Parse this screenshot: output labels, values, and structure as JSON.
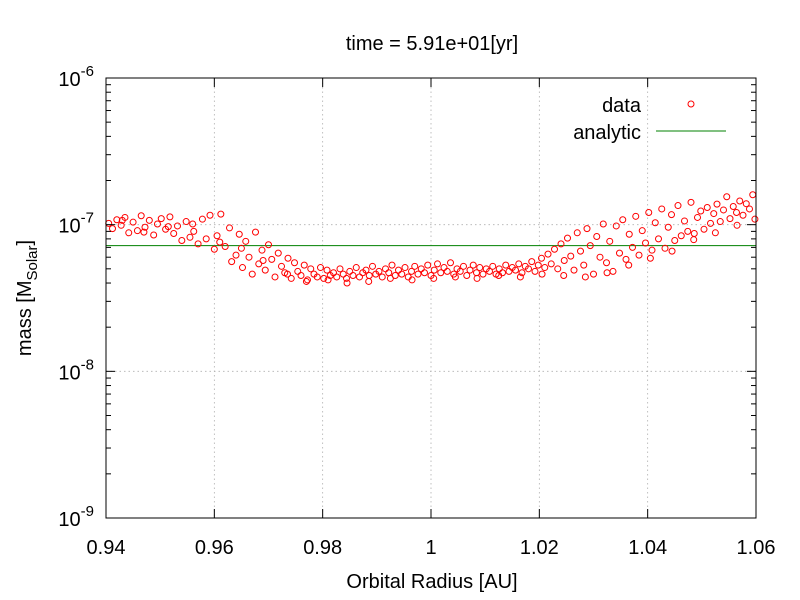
{
  "chart_data": {
    "type": "scatter",
    "title": "time = 5.91e+01[yr]",
    "xlabel": "Orbital Radius [AU]",
    "ylabel": {
      "prefix": "mass [M",
      "subscript": "Solar",
      "suffix": "]"
    },
    "xlim": [
      0.94,
      1.06
    ],
    "ylim": [
      1e-09,
      1e-06
    ],
    "yscale": "log",
    "grid": true,
    "legend_position": "top-right",
    "x_ticks": [
      {
        "value": 0.94,
        "label": "0.94"
      },
      {
        "value": 0.96,
        "label": "0.96"
      },
      {
        "value": 0.98,
        "label": "0.98"
      },
      {
        "value": 1.0,
        "label": "1"
      },
      {
        "value": 1.02,
        "label": "1.02"
      },
      {
        "value": 1.04,
        "label": "1.04"
      },
      {
        "value": 1.06,
        "label": "1.06"
      }
    ],
    "y_ticks": [
      {
        "value": 1e-09,
        "base": "10",
        "exp": "-9"
      },
      {
        "value": 1e-08,
        "base": "10",
        "exp": "-8"
      },
      {
        "value": 1e-07,
        "base": "10",
        "exp": "-7"
      },
      {
        "value": 1e-06,
        "base": "10",
        "exp": "-6"
      }
    ],
    "series": [
      {
        "name": "data",
        "kind": "scatter",
        "marker": "open-circle",
        "color": "#ff0000",
        "points": [
          [
            0.9405,
            1.02e-07
          ],
          [
            0.9412,
            9.4e-08
          ],
          [
            0.942,
            1.08e-07
          ],
          [
            0.9428,
            9.9e-08
          ],
          [
            0.9435,
            1.12e-07
          ],
          [
            0.9442,
            8.8e-08
          ],
          [
            0.945,
            1.04e-07
          ],
          [
            0.9458,
            9.1e-08
          ],
          [
            0.9465,
            1.15e-07
          ],
          [
            0.9472,
            9.6e-08
          ],
          [
            0.948,
            1.07e-07
          ],
          [
            0.9488,
            8.5e-08
          ],
          [
            0.9495,
            1.01e-07
          ],
          [
            0.9502,
            1.1e-07
          ],
          [
            0.951,
            9.3e-08
          ],
          [
            0.9518,
            1.13e-07
          ],
          [
            0.9525,
            8.7e-08
          ],
          [
            0.9532,
            9.8e-08
          ],
          [
            0.954,
            7.8e-08
          ],
          [
            0.9548,
            1.05e-07
          ],
          [
            0.9555,
            8.2e-08
          ],
          [
            0.9562,
            9e-08
          ],
          [
            0.957,
            7.4e-08
          ],
          [
            0.9578,
            1.09e-07
          ],
          [
            0.9585,
            8e-08
          ],
          [
            0.9592,
            1.16e-07
          ],
          [
            0.96,
            6.8e-08
          ],
          [
            0.9605,
            8.4e-08
          ],
          [
            0.9612,
            1.18e-07
          ],
          [
            0.962,
            7.1e-08
          ],
          [
            0.9628,
            9.5e-08
          ],
          [
            0.9632,
            5.6e-08
          ],
          [
            0.964,
            6.2e-08
          ],
          [
            0.9646,
            8.6e-08
          ],
          [
            0.9652,
            5.1e-08
          ],
          [
            0.9658,
            7.7e-08
          ],
          [
            0.9664,
            6e-08
          ],
          [
            0.967,
            4.6e-08
          ],
          [
            0.9676,
            8.9e-08
          ],
          [
            0.9682,
            5.4e-08
          ],
          [
            0.9688,
            6.7e-08
          ],
          [
            0.9694,
            4.9e-08
          ],
          [
            0.97,
            7.3e-08
          ],
          [
            0.9706,
            5.8e-08
          ],
          [
            0.9712,
            4.4e-08
          ],
          [
            0.9718,
            6.4e-08
          ],
          [
            0.9724,
            5.2e-08
          ],
          [
            0.973,
            4.7e-08
          ],
          [
            0.9736,
            5.9e-08
          ],
          [
            0.9742,
            4.3e-08
          ],
          [
            0.9748,
            5.5e-08
          ],
          [
            0.9754,
            4.8e-08
          ],
          [
            0.976,
            4.5e-08
          ],
          [
            0.9766,
            5.3e-08
          ],
          [
            0.9772,
            4.2e-08
          ],
          [
            0.9778,
            5e-08
          ],
          [
            0.9784,
            4.6e-08
          ],
          [
            0.979,
            4.4e-08
          ],
          [
            0.9796,
            5.1e-08
          ],
          [
            0.9802,
            4.3e-08
          ],
          [
            0.9808,
            4.9e-08
          ],
          [
            0.9814,
            4.5e-08
          ],
          [
            0.982,
            4.7e-08
          ],
          [
            0.9826,
            4.4e-08
          ],
          [
            0.9832,
            5e-08
          ],
          [
            0.9838,
            4.6e-08
          ],
          [
            0.9844,
            4.3e-08
          ],
          [
            0.985,
            4.8e-08
          ],
          [
            0.9856,
            4.5e-08
          ],
          [
            0.9862,
            5.1e-08
          ],
          [
            0.9868,
            4.4e-08
          ],
          [
            0.9874,
            4.7e-08
          ],
          [
            0.988,
            4.9e-08
          ],
          [
            0.9886,
            4.5e-08
          ],
          [
            0.9892,
            5.2e-08
          ],
          [
            0.9898,
            4.6e-08
          ],
          [
            0.9904,
            4.8e-08
          ],
          [
            0.991,
            4.4e-08
          ],
          [
            0.9916,
            5e-08
          ],
          [
            0.9922,
            4.7e-08
          ],
          [
            0.9928,
            5.3e-08
          ],
          [
            0.9934,
            4.5e-08
          ],
          [
            0.994,
            4.9e-08
          ],
          [
            0.9946,
            4.6e-08
          ],
          [
            0.9952,
            5.1e-08
          ],
          [
            0.9958,
            4.4e-08
          ],
          [
            0.9964,
            4.8e-08
          ],
          [
            0.997,
            5.2e-08
          ],
          [
            0.9976,
            4.6e-08
          ],
          [
            0.9982,
            5e-08
          ],
          [
            0.9988,
            4.7e-08
          ],
          [
            0.9994,
            5.3e-08
          ],
          [
            1.0,
            4.5e-08
          ],
          [
            1.0006,
            4.9e-08
          ],
          [
            1.0012,
            5.4e-08
          ],
          [
            1.0018,
            4.7e-08
          ],
          [
            1.0024,
            5.1e-08
          ],
          [
            1.003,
            4.8e-08
          ],
          [
            1.0036,
            5.5e-08
          ],
          [
            1.0042,
            4.6e-08
          ],
          [
            1.0048,
            5e-08
          ],
          [
            1.0054,
            4.8e-08
          ],
          [
            1.006,
            5.2e-08
          ],
          [
            1.0066,
            4.5e-08
          ],
          [
            1.0072,
            4.9e-08
          ],
          [
            1.0078,
            5.3e-08
          ],
          [
            1.0084,
            4.7e-08
          ],
          [
            1.009,
            5.1e-08
          ],
          [
            1.0096,
            4.6e-08
          ],
          [
            1.0102,
            5e-08
          ],
          [
            1.0108,
            4.8e-08
          ],
          [
            1.0114,
            5.2e-08
          ],
          [
            1.012,
            4.6e-08
          ],
          [
            1.0126,
            5e-08
          ],
          [
            1.0132,
            4.7e-08
          ],
          [
            1.0138,
            5.3e-08
          ],
          [
            1.0144,
            4.8e-08
          ],
          [
            1.015,
            5.1e-08
          ],
          [
            1.0156,
            4.9e-08
          ],
          [
            1.0162,
            5.4e-08
          ],
          [
            1.0168,
            4.7e-08
          ],
          [
            1.0174,
            5.2e-08
          ],
          [
            1.018,
            5e-08
          ],
          [
            1.0186,
            5.6e-08
          ],
          [
            1.0192,
            4.8e-08
          ],
          [
            1.0198,
            5.3e-08
          ],
          [
            1.0204,
            5.9e-08
          ],
          [
            1.021,
            5.1e-08
          ],
          [
            1.0216,
            6.3e-08
          ],
          [
            1.0222,
            5.4e-08
          ],
          [
            1.0228,
            6.8e-08
          ],
          [
            1.0234,
            5e-08
          ],
          [
            1.024,
            7.4e-08
          ],
          [
            1.0246,
            5.7e-08
          ],
          [
            1.0252,
            8.1e-08
          ],
          [
            1.0258,
            6.1e-08
          ],
          [
            1.0264,
            4.9e-08
          ],
          [
            1.027,
            8.8e-08
          ],
          [
            1.0276,
            6.6e-08
          ],
          [
            1.0282,
            5.3e-08
          ],
          [
            1.0288,
            9.4e-08
          ],
          [
            1.0294,
            7.2e-08
          ],
          [
            1.03,
            4.6e-08
          ],
          [
            1.0306,
            8.3e-08
          ],
          [
            1.0312,
            6e-08
          ],
          [
            1.0318,
            1.01e-07
          ],
          [
            1.0324,
            5.5e-08
          ],
          [
            1.033,
            7.7e-08
          ],
          [
            1.0336,
            4.8e-08
          ],
          [
            1.0342,
            9.8e-08
          ],
          [
            1.0348,
            6.4e-08
          ],
          [
            1.0354,
            1.08e-07
          ],
          [
            1.036,
            5.8e-08
          ],
          [
            1.0366,
            8.6e-08
          ],
          [
            1.0372,
            7e-08
          ],
          [
            1.0378,
            1.14e-07
          ],
          [
            1.0384,
            6.2e-08
          ],
          [
            1.039,
            9.1e-08
          ],
          [
            1.0396,
            7.5e-08
          ],
          [
            1.0402,
            1.21e-07
          ],
          [
            1.0408,
            6.7e-08
          ],
          [
            1.0414,
            1.03e-07
          ],
          [
            1.042,
            8e-08
          ],
          [
            1.0426,
            1.28e-07
          ],
          [
            1.0432,
            6.9e-08
          ],
          [
            1.0438,
            9.6e-08
          ],
          [
            1.0444,
            1.17e-07
          ],
          [
            1.045,
            7.8e-08
          ],
          [
            1.0456,
            1.35e-07
          ],
          [
            1.0462,
            8.4e-08
          ],
          [
            1.0468,
            1.06e-07
          ],
          [
            1.0474,
            9e-08
          ],
          [
            1.048,
            1.42e-07
          ],
          [
            1.0486,
            8.7e-08
          ],
          [
            1.0492,
            1.12e-07
          ],
          [
            1.0498,
            1.24e-07
          ],
          [
            1.0504,
            9.3e-08
          ],
          [
            1.051,
            1.31e-07
          ],
          [
            1.0516,
            1.02e-07
          ],
          [
            1.0522,
            1.19e-07
          ],
          [
            1.0528,
            1.38e-07
          ],
          [
            1.0534,
            1.05e-07
          ],
          [
            1.054,
            1.26e-07
          ],
          [
            1.0546,
            1.55e-07
          ],
          [
            1.0552,
            1.1e-07
          ],
          [
            1.0558,
            1.33e-07
          ],
          [
            1.0564,
            1.21e-07
          ],
          [
            1.057,
            1.45e-07
          ],
          [
            1.0576,
            1.16e-07
          ],
          [
            1.0582,
            1.39e-07
          ],
          [
            1.0588,
            1.28e-07
          ],
          [
            1.0594,
            1.6e-07
          ],
          [
            0.943,
            1.07e-07
          ],
          [
            0.947,
            8.9e-08
          ],
          [
            0.9515,
            9.7e-08
          ],
          [
            0.956,
            1.01e-07
          ],
          [
            0.961,
            7.6e-08
          ],
          [
            0.965,
            6.9e-08
          ],
          [
            0.969,
            5.7e-08
          ],
          [
            0.9735,
            4.6e-08
          ],
          [
            0.977,
            4.1e-08
          ],
          [
            0.981,
            4.2e-08
          ],
          [
            0.9845,
            4e-08
          ],
          [
            0.9885,
            4.1e-08
          ],
          [
            0.9925,
            4.3e-08
          ],
          [
            0.9965,
            4.2e-08
          ],
          [
            1.0005,
            4.3e-08
          ],
          [
            1.0045,
            4.4e-08
          ],
          [
            1.0085,
            4.3e-08
          ],
          [
            1.0125,
            4.5e-08
          ],
          [
            1.0165,
            4.4e-08
          ],
          [
            1.0205,
            4.6e-08
          ],
          [
            1.0245,
            4.5e-08
          ],
          [
            1.0285,
            4.4e-08
          ],
          [
            1.0325,
            4.7e-08
          ],
          [
            1.0365,
            5.3e-08
          ],
          [
            1.0405,
            5.9e-08
          ],
          [
            1.0445,
            6.6e-08
          ],
          [
            1.0485,
            7.9e-08
          ],
          [
            1.0525,
            8.8e-08
          ],
          [
            1.0565,
            9.9e-08
          ],
          [
            1.0598,
            1.09e-07
          ]
        ]
      },
      {
        "name": "analytic",
        "kind": "line",
        "color": "#008000",
        "points": [
          [
            0.94,
            7.2e-08
          ],
          [
            1.06,
            7.2e-08
          ]
        ]
      }
    ]
  }
}
